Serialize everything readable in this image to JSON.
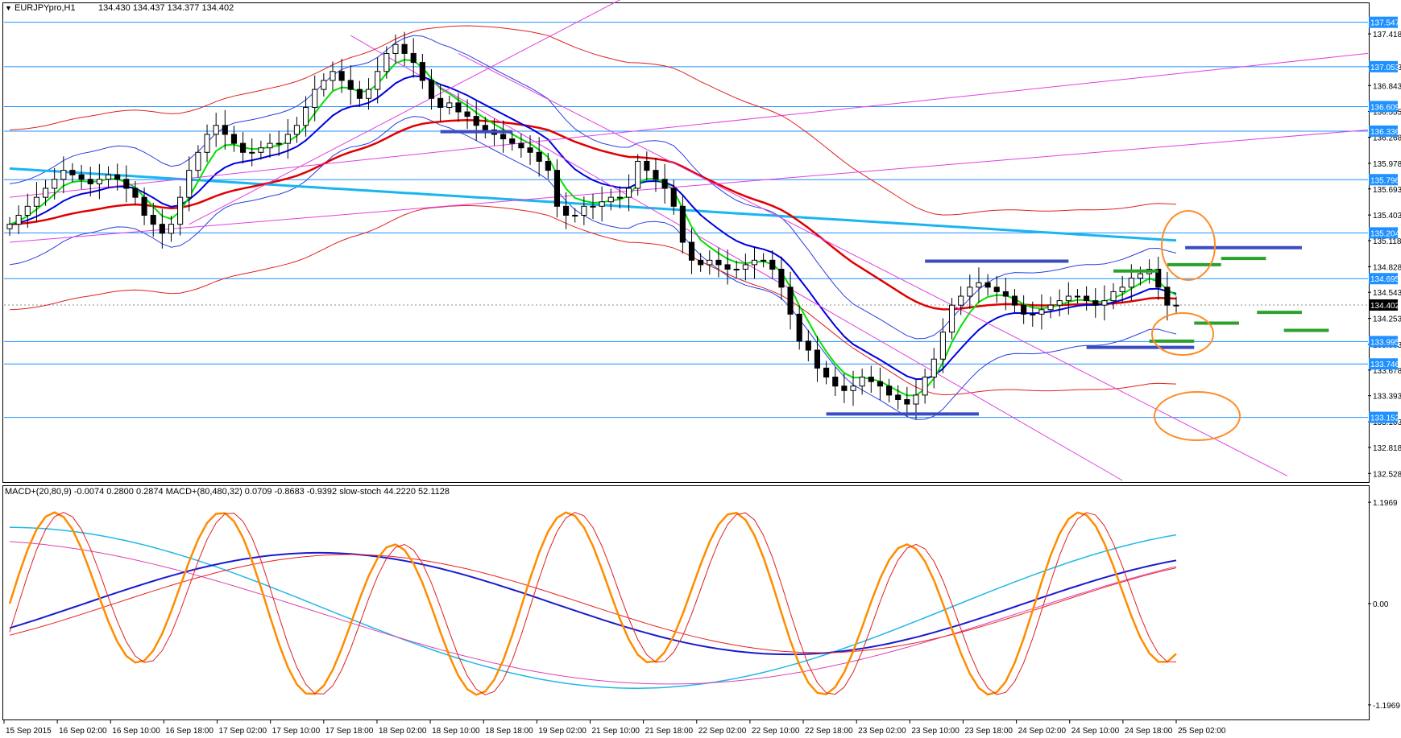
{
  "header": {
    "symbol": "EURJPYpro,H1",
    "ohlc": "134.430 134.437 134.377 134.402"
  },
  "indicator_header": "MACD+(20,80,9) -0.0074 0.2800 0.2874  MACD+(80,480,32) 0.0709 -0.8683 -0.9392  slow-stoch 44.2220 52.1128",
  "colors": {
    "background": "#ffffff",
    "candle": "#000000",
    "hline": "#1e90ff",
    "label_bg": "#1e90ff",
    "current_price_bg": "#000000",
    "ema_fast": "#00e000",
    "ema_mid": "#0000e0",
    "ema_slow": "#e00000",
    "ema_long": "#19b5f0",
    "bands_inner": "#2a3fe0",
    "bands_outer": "#e02020",
    "trendline": "#e040e0",
    "support": "#3b4cc0",
    "support_green": "#2ca02c",
    "circle": "#ff8c28",
    "macd_blue": "#1a1ad0",
    "macd_red": "#e82020",
    "macd_cyan": "#20b8e8",
    "macd_magenta": "#e040b0",
    "stoch_orange": "#ff8c00",
    "stoch_red": "#e02020"
  },
  "chart_data": [
    {
      "type": "candlestick",
      "symbol": "EURJPYpro,H1",
      "ylim": [
        132.45,
        137.75
      ],
      "y_ticks": [
        137.418,
        137.053,
        136.843,
        136.555,
        136.268,
        135.978,
        135.693,
        135.403,
        135.118,
        134.828,
        134.543,
        134.253,
        133.963,
        133.678,
        133.393,
        133.103,
        132.818,
        132.528
      ],
      "x_labels": [
        "15 Sep 2015",
        "16 Sep 02:00",
        "16 Sep 10:00",
        "16 Sep 18:00",
        "17 Sep 02:00",
        "17 Sep 10:00",
        "17 Sep 18:00",
        "18 Sep 02:00",
        "18 Sep 10:00",
        "18 Sep 18:00",
        "19 Sep 02:00",
        "21 Sep 10:00",
        "21 Sep 18:00",
        "22 Sep 02:00",
        "22 Sep 10:00",
        "22 Sep 18:00",
        "23 Sep 02:00",
        "23 Sep 10:00",
        "23 Sep 18:00",
        "24 Sep 02:00",
        "24 Sep 10:00",
        "24 Sep 18:00",
        "25 Sep 02:00"
      ],
      "horizontal_levels": [
        137.547,
        137.053,
        136.609,
        136.336,
        135.796,
        135.204,
        134.695,
        133.995,
        133.746,
        133.152
      ],
      "current_price": 134.402,
      "close_path": [
        135.3,
        135.4,
        135.5,
        135.6,
        135.7,
        135.8,
        135.9,
        135.85,
        135.8,
        135.75,
        135.8,
        135.85,
        135.8,
        135.7,
        135.6,
        135.4,
        135.3,
        135.2,
        135.3,
        135.6,
        135.9,
        136.1,
        136.3,
        136.4,
        136.3,
        136.2,
        136.1,
        136.1,
        136.15,
        136.2,
        136.2,
        136.3,
        136.4,
        136.6,
        136.8,
        136.9,
        137.0,
        136.9,
        136.8,
        136.7,
        136.8,
        137.0,
        137.2,
        137.3,
        137.2,
        137.1,
        136.9,
        136.7,
        136.6,
        136.65,
        136.55,
        136.5,
        136.4,
        136.35,
        136.3,
        136.25,
        136.2,
        136.15,
        136.1,
        136.0,
        135.9,
        135.5,
        135.4,
        135.4,
        135.5,
        135.5,
        135.55,
        135.6,
        135.6,
        135.7,
        136.0,
        135.9,
        135.8,
        135.7,
        135.5,
        135.1,
        134.9,
        134.85,
        134.9,
        134.85,
        134.8,
        134.8,
        134.85,
        134.9,
        134.9,
        134.8,
        134.6,
        134.3,
        134.0,
        133.9,
        133.7,
        133.6,
        133.5,
        133.45,
        133.5,
        133.6,
        133.55,
        133.5,
        133.4,
        133.35,
        133.3,
        133.4,
        133.6,
        133.8,
        134.1,
        134.4,
        134.5,
        134.6,
        134.65,
        134.6,
        134.55,
        134.5,
        134.4,
        134.3,
        134.3,
        134.35,
        134.4,
        134.45,
        134.5,
        134.5,
        134.45,
        134.4,
        134.45,
        134.55,
        134.6,
        134.7,
        134.75,
        134.8,
        134.6,
        134.4,
        134.4
      ]
    },
    {
      "type": "line",
      "indicators": [
        "MACD+(20,80,9)",
        "MACD+(80,480,32)",
        "slow-stoch"
      ],
      "values": {
        "macd1": -0.0074,
        "signal1": 0.28,
        "hist1": 0.2874,
        "macd2": 0.0709,
        "signal2": -0.8683,
        "hist2": -0.9392,
        "stoch_k": 44.222,
        "stoch_d": 52.1128
      },
      "y_ticks": [
        1.1969,
        0.0,
        -1.1969
      ]
    }
  ]
}
